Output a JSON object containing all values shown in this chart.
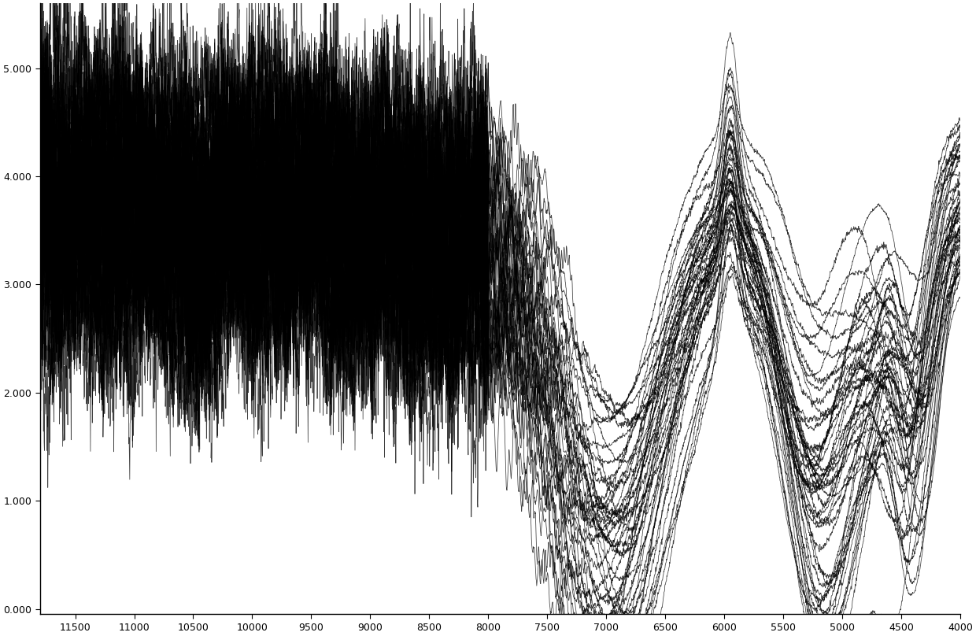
{
  "xmin": 4000,
  "xmax": 11800,
  "ymin": -0.05,
  "ymax": 5.6,
  "x_ticks": [
    11500,
    11000,
    10500,
    10000,
    9500,
    9000,
    8500,
    8000,
    7500,
    7000,
    6500,
    6000,
    5500,
    5000,
    4500,
    4000
  ],
  "y_ticks": [
    0.0,
    1.0,
    2.0,
    3.0,
    4.0,
    5.0
  ],
  "n_spectra": 50,
  "background_color": "#ffffff",
  "line_color": "#000000",
  "line_alpha": 0.75,
  "line_width": 0.55
}
